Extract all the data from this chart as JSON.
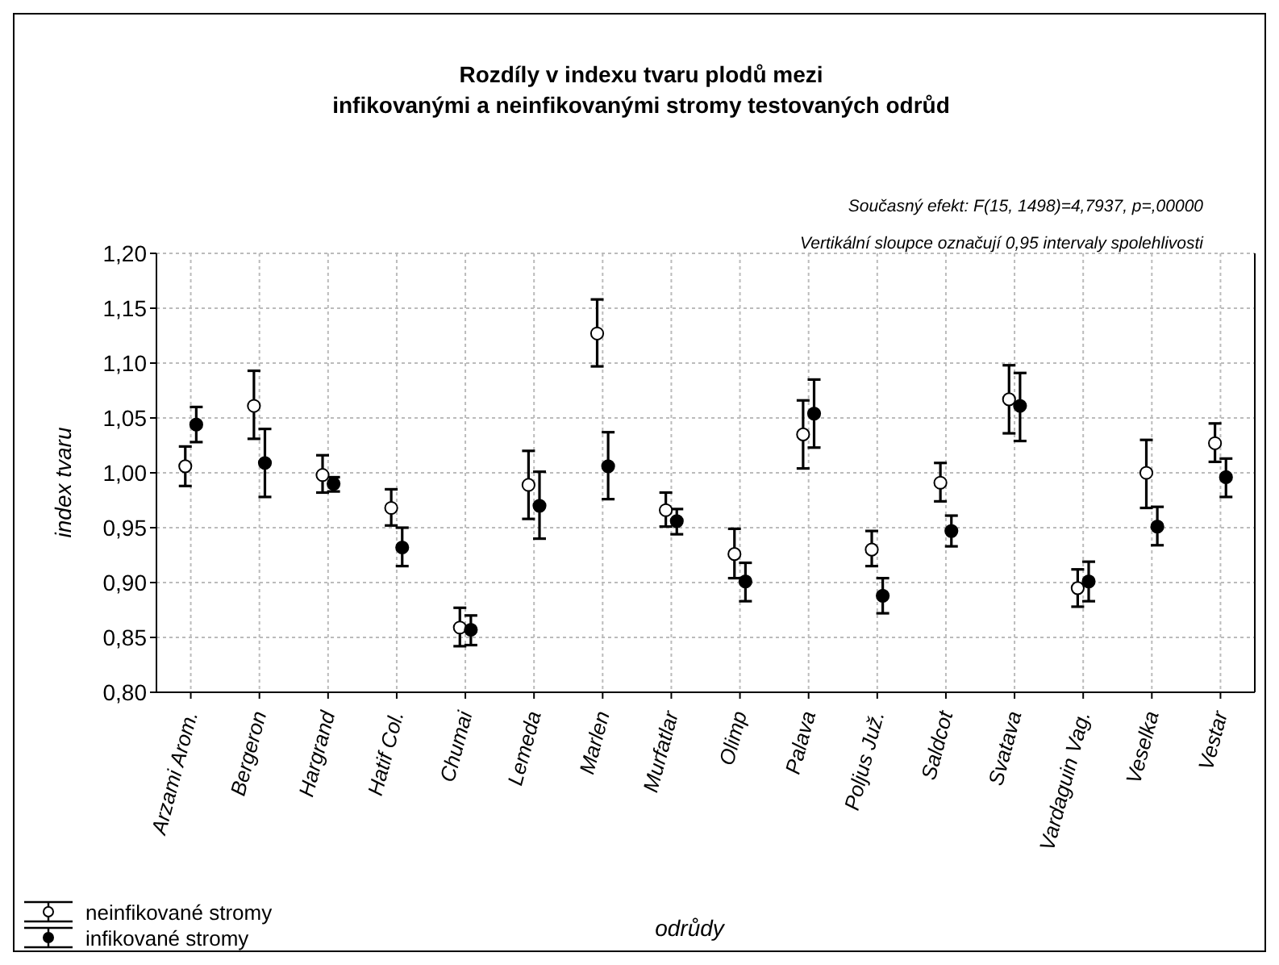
{
  "chart_data": {
    "type": "scatter",
    "title": "Rozdíly v indexu tvaru plodů mezi\ninfikovanými a neinfikovanými stromy testovaných odrůd",
    "xlabel": "odrůdy",
    "ylabel": "index tvaru",
    "annotations": [
      "Současný efekt: F(15, 1498)=4,7937, p=,00000",
      "Vertikální sloupce označují 0,95 intervaly spolehlivosti"
    ],
    "categories": [
      "Arzami Arom.",
      "Bergeron",
      "Hargrand",
      "Hatif Col.",
      "Chumai",
      "Lemeda",
      "Marlen",
      "Murfatlar",
      "Olimp",
      "Palava",
      "Poljus Juž.",
      "Saldcot",
      "Svatava",
      "Vardaguin Vag.",
      "Veselka",
      "Vestar"
    ],
    "series": [
      {
        "name": "neinfikované stromy",
        "color": "#ffffff",
        "values": [
          1.006,
          1.061,
          0.998,
          0.968,
          0.859,
          0.989,
          1.127,
          0.966,
          0.926,
          1.035,
          0.93,
          0.991,
          1.067,
          0.895,
          1.0,
          1.027
        ],
        "errors": [
          [
            0.988,
            1.024
          ],
          [
            1.031,
            1.093
          ],
          [
            0.982,
            1.016
          ],
          [
            0.952,
            0.985
          ],
          [
            0.842,
            0.877
          ],
          [
            0.958,
            1.02
          ],
          [
            1.097,
            1.158
          ],
          [
            0.951,
            0.982
          ],
          [
            0.904,
            0.949
          ],
          [
            1.004,
            1.066
          ],
          [
            0.915,
            0.947
          ],
          [
            0.974,
            1.009
          ],
          [
            1.036,
            1.098
          ],
          [
            0.878,
            0.912
          ],
          [
            0.968,
            1.03
          ],
          [
            1.01,
            1.045
          ]
        ]
      },
      {
        "name": "infikované stromy",
        "color": "#000000",
        "values": [
          1.044,
          1.009,
          0.99,
          0.932,
          0.857,
          0.97,
          1.006,
          0.956,
          0.901,
          1.054,
          0.888,
          0.947,
          1.061,
          0.901,
          0.951,
          0.996
        ],
        "errors": [
          [
            1.028,
            1.06
          ],
          [
            0.978,
            1.04
          ],
          [
            0.983,
            0.996
          ],
          [
            0.915,
            0.95
          ],
          [
            0.843,
            0.87
          ],
          [
            0.94,
            1.001
          ],
          [
            0.976,
            1.037
          ],
          [
            0.944,
            0.967
          ],
          [
            0.883,
            0.918
          ],
          [
            1.023,
            1.085
          ],
          [
            0.872,
            0.904
          ],
          [
            0.933,
            0.961
          ],
          [
            1.029,
            1.091
          ],
          [
            0.883,
            0.919
          ],
          [
            0.934,
            0.969
          ],
          [
            0.978,
            1.013
          ]
        ]
      }
    ],
    "ylim": [
      0.8,
      1.2
    ],
    "yticks": [
      {
        "value": 0.8,
        "label": "0,80"
      },
      {
        "value": 0.85,
        "label": "0,85"
      },
      {
        "value": 0.9,
        "label": "0,90"
      },
      {
        "value": 0.95,
        "label": "0,95"
      },
      {
        "value": 1.0,
        "label": "1,00"
      },
      {
        "value": 1.05,
        "label": "1,05"
      },
      {
        "value": 1.1,
        "label": "1,10"
      },
      {
        "value": 1.15,
        "label": "1,15"
      },
      {
        "value": 1.2,
        "label": "1,20"
      }
    ],
    "grid": true,
    "legend": "bottom left",
    "marker": "circle"
  }
}
